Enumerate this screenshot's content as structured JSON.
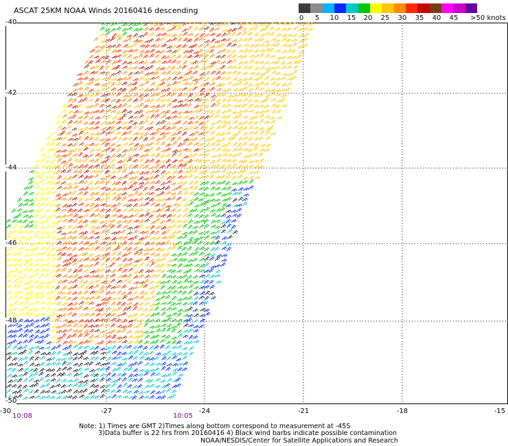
{
  "title": "ASCAT 25KM NOAA Winds 20160416 descending",
  "legend": {
    "colors": [
      "#3c3c3c",
      "#8c8c8c",
      "#00b4ff",
      "#0028ff",
      "#00c8c8",
      "#00c800",
      "#ffff00",
      "#ffc800",
      "#ff8c00",
      "#ff2800",
      "#c80000",
      "#7a3c14",
      "#ff00ff",
      "#c800c8",
      "#6400a0"
    ],
    "labels": [
      "0",
      "5",
      "10",
      "15",
      "20",
      "25",
      "30",
      "35",
      "40",
      "45",
      ">50 knots"
    ]
  },
  "map": {
    "lon_ticks": [
      "-30",
      "-27",
      "-24",
      "-21",
      "-18",
      "-15"
    ],
    "lat_ticks": [
      "-40",
      "-42",
      "-44",
      "-46",
      "-48",
      "-50"
    ],
    "times": [
      "10:08",
      "10:05"
    ]
  },
  "notes": {
    "line1": "Note: 1) Times are GMT 2)Times along bottom correspond to measurement at -45S",
    "line2": "3)Data buffer is 22 hrs from 20160416 4) Black wind barbs indicate possible contamination",
    "line3": "NOAA/NESDIS/Center for Satellite Applications and Research"
  }
}
